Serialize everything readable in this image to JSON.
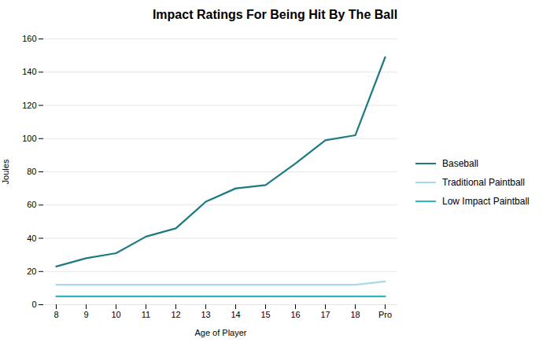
{
  "chart_data": {
    "type": "line",
    "title": "Impact Ratings For Being Hit By The Ball",
    "xlabel": "Age of Player",
    "ylabel": "Joules",
    "categories": [
      "8",
      "9",
      "10",
      "11",
      "12",
      "13",
      "14",
      "15",
      "16",
      "17",
      "18",
      "Pro"
    ],
    "series": [
      {
        "name": "Baseball",
        "color": "#1c7a80",
        "values": [
          23,
          28,
          31,
          41,
          46,
          62,
          70,
          72,
          85,
          99,
          102,
          149
        ]
      },
      {
        "name": "Traditional Paintball",
        "color": "#a8d8ea",
        "values": [
          12,
          12,
          12,
          12,
          12,
          12,
          12,
          12,
          12,
          12,
          12,
          14
        ]
      },
      {
        "name": "Low Impact Paintball",
        "color": "#2ab8c5",
        "values": [
          5,
          5,
          5,
          5,
          5,
          5,
          5,
          5,
          5,
          5,
          5,
          5
        ]
      }
    ],
    "ylim": [
      0,
      160
    ],
    "yticks": [
      0,
      20,
      40,
      60,
      80,
      100,
      120,
      140,
      160
    ],
    "grid": true,
    "legend": "right"
  }
}
